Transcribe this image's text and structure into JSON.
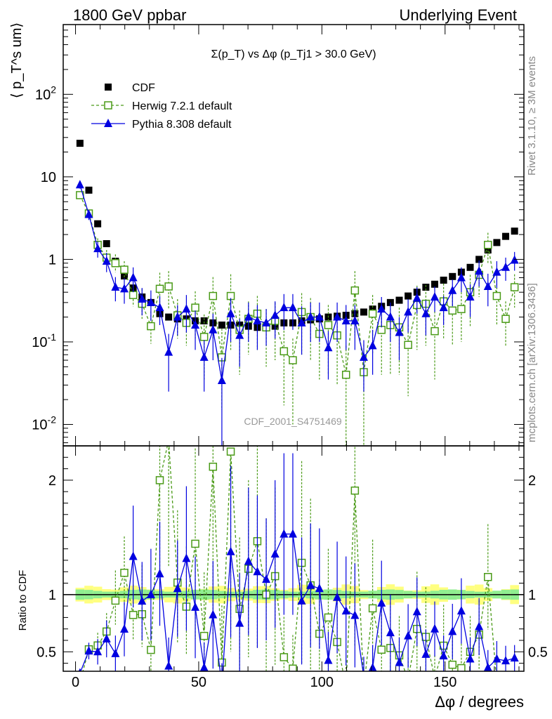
{
  "header": {
    "left": "1800 GeV ppbar",
    "right": "Underlying Event"
  },
  "side_labels": {
    "rivet": "Rivet 3.1.10, ≥ 3M events",
    "mcplots": "mcplots.cern.ch [arXiv:1306.3436]"
  },
  "watermark": "CDF_2001_S4751469",
  "chart_data": {
    "type": "scatter",
    "title": "Σ(p_T) vs Δφ (p_Tj1 > 30.0 GeV)",
    "xlabel": "Δφ / degrees",
    "ylabel": "⟨ p_T^s um⟩",
    "ratio_ylabel": "Ratio to CDF",
    "xlim": [
      -5,
      182
    ],
    "ylim": [
      0.0055,
      700
    ],
    "yscale": "log",
    "ratio_ylim": [
      0.33,
      2.3
    ],
    "legend_position": "top-left",
    "x_ticks": [
      0,
      50,
      100,
      150
    ],
    "y_ticks": [
      "10^-2",
      "10^-1",
      "1",
      "10",
      "10^2"
    ],
    "ratio_ticks": [
      "0.5",
      "1",
      "2"
    ],
    "x": [
      1.8,
      5.4,
      9.0,
      12.6,
      16.2,
      19.8,
      23.4,
      27.0,
      30.6,
      34.2,
      37.8,
      41.4,
      45.0,
      48.6,
      52.2,
      55.8,
      59.4,
      63.0,
      66.6,
      70.2,
      73.8,
      77.4,
      81.0,
      84.6,
      88.2,
      91.8,
      95.4,
      99.0,
      102.6,
      106.2,
      109.8,
      113.4,
      117.0,
      120.6,
      124.2,
      127.8,
      131.4,
      135.0,
      138.6,
      142.2,
      145.8,
      149.4,
      153.0,
      156.6,
      160.2,
      163.8,
      167.4,
      171.0,
      174.6,
      178.2
    ],
    "series": [
      {
        "name": "CDF",
        "color": "#000000",
        "marker": "square-filled",
        "values": [
          25.5,
          6.9,
          2.7,
          1.55,
          0.95,
          0.63,
          0.45,
          0.35,
          0.3,
          0.22,
          0.2,
          0.19,
          0.19,
          0.18,
          0.18,
          0.17,
          0.16,
          0.16,
          0.16,
          0.155,
          0.15,
          0.15,
          0.155,
          0.17,
          0.17,
          0.18,
          0.185,
          0.19,
          0.2,
          0.205,
          0.21,
          0.22,
          0.23,
          0.25,
          0.27,
          0.3,
          0.32,
          0.36,
          0.4,
          0.46,
          0.5,
          0.56,
          0.62,
          0.7,
          0.8,
          1.0,
          1.3,
          1.6,
          1.9,
          2.2
        ],
        "errors_lo": [],
        "errors_hi": []
      },
      {
        "name": "Herwig 7.2.1 default",
        "color": "#4a9a17",
        "marker": "square-open",
        "line": "dashed",
        "values": [
          6.0,
          3.6,
          1.5,
          1.05,
          0.9,
          0.75,
          0.37,
          0.29,
          0.155,
          0.44,
          0.47,
          0.21,
          0.17,
          0.26,
          0.115,
          0.36,
          0.065,
          0.36,
          0.14,
          0.19,
          0.22,
          0.15,
          0.18,
          0.077,
          0.06,
          0.23,
          0.2,
          0.125,
          0.16,
          0.12,
          0.04,
          0.42,
          0.043,
          0.22,
          0.14,
          0.16,
          0.15,
          0.092,
          0.28,
          0.29,
          0.135,
          0.31,
          0.24,
          0.25,
          0.4,
          0.65,
          1.5,
          0.36,
          0.19,
          0.46
        ],
        "errors_lo": [
          0.5,
          0.3,
          0.25,
          0.2,
          0.2,
          0.18,
          0.1,
          0.1,
          0.06,
          0.2,
          0.22,
          0.1,
          0.08,
          0.15,
          0.08,
          0.25,
          0.05,
          0.28,
          0.1,
          0.12,
          0.14,
          0.1,
          0.12,
          0.06,
          0.05,
          0.16,
          0.14,
          0.09,
          0.12,
          0.09,
          0.035,
          0.3,
          0.038,
          0.15,
          0.1,
          0.12,
          0.11,
          0.07,
          0.2,
          0.2,
          0.1,
          0.2,
          0.15,
          0.15,
          0.25,
          0.3,
          0.6,
          0.2,
          0.1,
          0.2
        ],
        "errors_hi": [
          0.5,
          0.3,
          0.3,
          0.25,
          0.25,
          0.2,
          0.12,
          0.15,
          0.08,
          0.25,
          0.25,
          0.12,
          0.1,
          0.15,
          0.1,
          0.25,
          0.08,
          0.3,
          0.1,
          0.12,
          0.14,
          0.1,
          0.12,
          0.06,
          0.05,
          0.16,
          0.14,
          0.09,
          0.12,
          0.09,
          0.05,
          0.3,
          0.05,
          0.15,
          0.1,
          0.12,
          0.11,
          0.07,
          0.2,
          0.2,
          0.1,
          0.2,
          0.15,
          0.15,
          0.25,
          0.3,
          0.6,
          0.2,
          0.12,
          0.2
        ]
      },
      {
        "name": "Pythia 8.308 default",
        "color": "#0000e0",
        "marker": "triangle-filled",
        "line": "solid",
        "values": [
          8.0,
          3.5,
          1.35,
          0.95,
          0.46,
          0.44,
          0.6,
          0.33,
          0.3,
          0.26,
          0.075,
          0.2,
          0.25,
          0.16,
          0.065,
          0.14,
          0.034,
          0.22,
          0.12,
          0.2,
          0.18,
          0.17,
          0.21,
          0.26,
          0.26,
          0.17,
          0.2,
          0.2,
          0.085,
          0.2,
          0.18,
          0.18,
          0.065,
          0.09,
          0.25,
          0.2,
          0.13,
          0.23,
          0.34,
          0.22,
          0.35,
          0.26,
          0.42,
          0.6,
          0.35,
          0.72,
          0.47,
          0.7,
          0.8,
          0.98
        ],
        "errors_lo": [
          0.8,
          0.5,
          0.3,
          0.25,
          0.15,
          0.15,
          0.2,
          0.12,
          0.12,
          0.1,
          0.05,
          0.08,
          0.12,
          0.08,
          0.04,
          0.08,
          0.03,
          0.12,
          0.07,
          0.1,
          0.1,
          0.08,
          0.1,
          0.12,
          0.12,
          0.1,
          0.1,
          0.1,
          0.05,
          0.1,
          0.1,
          0.1,
          0.04,
          0.05,
          0.1,
          0.1,
          0.07,
          0.1,
          0.12,
          0.1,
          0.12,
          0.1,
          0.15,
          0.2,
          0.15,
          0.25,
          0.2,
          0.25,
          0.25,
          0.25
        ],
        "errors_hi": [
          0.8,
          0.5,
          0.3,
          0.25,
          0.15,
          0.15,
          0.2,
          0.12,
          0.12,
          0.1,
          0.05,
          0.08,
          0.12,
          0.08,
          0.04,
          0.08,
          0.03,
          0.12,
          0.07,
          0.1,
          0.1,
          0.08,
          0.1,
          0.12,
          0.12,
          0.1,
          0.1,
          0.1,
          0.05,
          0.1,
          0.1,
          0.1,
          0.04,
          0.05,
          0.1,
          0.1,
          0.07,
          0.1,
          0.12,
          0.1,
          0.12,
          0.1,
          0.15,
          0.2,
          0.15,
          0.25,
          0.2,
          0.25,
          0.25,
          0.25
        ]
      }
    ],
    "data_band_colors": {
      "inner": "#90ee90",
      "outer": "#ffff80"
    }
  }
}
